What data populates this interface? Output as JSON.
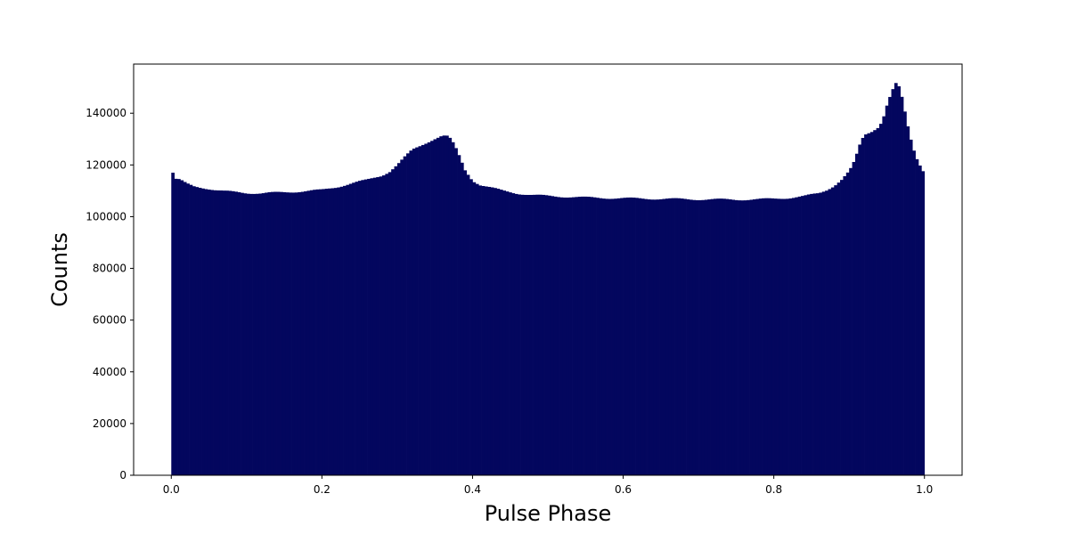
{
  "chart_data": {
    "type": "bar",
    "title": "",
    "xlabel": "Pulse Phase",
    "ylabel": "Counts",
    "xlim": [
      -0.05,
      1.05
    ],
    "ylim": [
      0,
      159000
    ],
    "grid": false,
    "bar_color": "#03065e",
    "x_ticks": [
      {
        "value": 0.0,
        "label": "0.0"
      },
      {
        "value": 0.2,
        "label": "0.2"
      },
      {
        "value": 0.4,
        "label": "0.4"
      },
      {
        "value": 0.6,
        "label": "0.6"
      },
      {
        "value": 0.8,
        "label": "0.8"
      },
      {
        "value": 1.0,
        "label": "1.0"
      }
    ],
    "y_ticks": [
      {
        "value": 0,
        "label": "0"
      },
      {
        "value": 20000,
        "label": "20000"
      },
      {
        "value": 40000,
        "label": "40000"
      },
      {
        "value": 60000,
        "label": "60000"
      },
      {
        "value": 80000,
        "label": "80000"
      },
      {
        "value": 100000,
        "label": "100000"
      },
      {
        "value": 120000,
        "label": "120000"
      },
      {
        "value": 140000,
        "label": "140000"
      }
    ],
    "bin_range": [
      0.0,
      1.0
    ],
    "bin_count": 250,
    "anchors": [
      [
        0.0,
        117400
      ],
      [
        0.002,
        117000
      ],
      [
        0.006,
        114500
      ],
      [
        0.01,
        114300
      ],
      [
        0.015,
        113600
      ],
      [
        0.02,
        112700
      ],
      [
        0.03,
        111700
      ],
      [
        0.04,
        111300
      ],
      [
        0.05,
        110800
      ],
      [
        0.06,
        110200
      ],
      [
        0.07,
        109800
      ],
      [
        0.08,
        109600
      ],
      [
        0.1,
        109200
      ],
      [
        0.12,
        109000
      ],
      [
        0.14,
        109300
      ],
      [
        0.16,
        109600
      ],
      [
        0.18,
        109900
      ],
      [
        0.2,
        110300
      ],
      [
        0.22,
        111500
      ],
      [
        0.24,
        112900
      ],
      [
        0.26,
        114200
      ],
      [
        0.28,
        116000
      ],
      [
        0.29,
        117500
      ],
      [
        0.3,
        120000
      ],
      [
        0.31,
        123000
      ],
      [
        0.32,
        125800
      ],
      [
        0.33,
        127300
      ],
      [
        0.34,
        128800
      ],
      [
        0.35,
        130200
      ],
      [
        0.36,
        131300
      ],
      [
        0.368,
        131000
      ],
      [
        0.375,
        128000
      ],
      [
        0.38,
        125000
      ],
      [
        0.385,
        121500
      ],
      [
        0.39,
        118000
      ],
      [
        0.4,
        114000
      ],
      [
        0.41,
        112300
      ],
      [
        0.42,
        111500
      ],
      [
        0.44,
        110000
      ],
      [
        0.46,
        109000
      ],
      [
        0.48,
        108300
      ],
      [
        0.5,
        108000
      ],
      [
        0.55,
        107400
      ],
      [
        0.6,
        107100
      ],
      [
        0.65,
        106900
      ],
      [
        0.7,
        106700
      ],
      [
        0.75,
        106600
      ],
      [
        0.78,
        106700
      ],
      [
        0.8,
        106900
      ],
      [
        0.82,
        107300
      ],
      [
        0.84,
        107900
      ],
      [
        0.86,
        109000
      ],
      [
        0.87,
        110300
      ],
      [
        0.88,
        112000
      ],
      [
        0.89,
        114300
      ],
      [
        0.9,
        117500
      ],
      [
        0.905,
        120000
      ],
      [
        0.91,
        124000
      ],
      [
        0.915,
        128500
      ],
      [
        0.92,
        131500
      ],
      [
        0.93,
        133000
      ],
      [
        0.94,
        135000
      ],
      [
        0.945,
        138000
      ],
      [
        0.95,
        143000
      ],
      [
        0.955,
        147000
      ],
      [
        0.96,
        150500
      ],
      [
        0.963,
        151800
      ],
      [
        0.967,
        149500
      ],
      [
        0.97,
        146000
      ],
      [
        0.975,
        139000
      ],
      [
        0.98,
        132000
      ],
      [
        0.985,
        126500
      ],
      [
        0.99,
        122500
      ],
      [
        0.995,
        119500
      ],
      [
        0.999,
        117400
      ]
    ]
  }
}
